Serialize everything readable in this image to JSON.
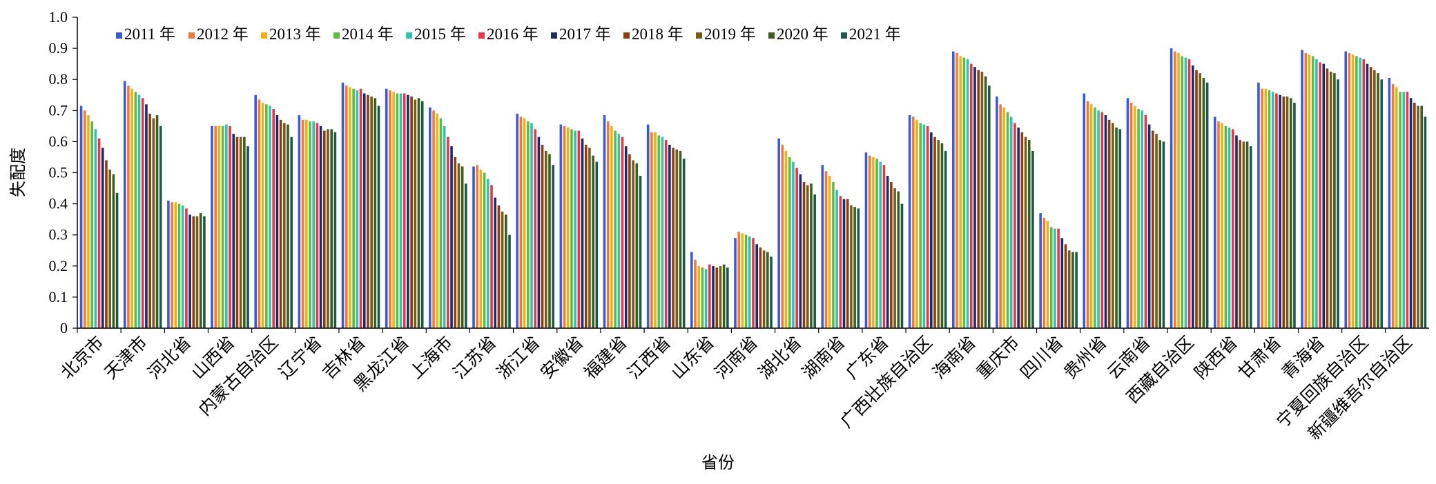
{
  "chart_data": {
    "type": "bar",
    "title": "",
    "xlabel": "省份",
    "ylabel": "失配度",
    "ylim": [
      0,
      1.0
    ],
    "yticks": [
      "0",
      "0.1",
      "0.2",
      "0.3",
      "0.4",
      "0.5",
      "0.6",
      "0.7",
      "0.8",
      "0.9",
      "1.0"
    ],
    "legend_position": "top-left",
    "grid": false,
    "categories": [
      "北京市",
      "天津市",
      "河北省",
      "山西省",
      "内蒙古自治区",
      "辽宁省",
      "吉林省",
      "黑龙江省",
      "上海市",
      "江苏省",
      "浙江省",
      "安徽省",
      "福建省",
      "江西省",
      "山东省",
      "河南省",
      "湖北省",
      "湖南省",
      "广东省",
      "广西壮族自治区",
      "海南省",
      "重庆市",
      "四川省",
      "贵州省",
      "云南省",
      "西藏自治区",
      "陕西省",
      "甘肃省",
      "青海省",
      "宁夏回族自治区",
      "新疆维吾尔自治区"
    ],
    "series": [
      {
        "name": "2011 年",
        "color": "#3b5bd6",
        "values": [
          0.715,
          0.795,
          0.41,
          0.65,
          0.75,
          0.685,
          0.79,
          0.77,
          0.71,
          0.52,
          0.69,
          0.655,
          0.685,
          0.655,
          0.245,
          0.29,
          0.61,
          0.525,
          0.565,
          0.685,
          0.89,
          0.745,
          0.37,
          0.755,
          0.74,
          0.9,
          0.68,
          0.79,
          0.895,
          0.89,
          0.805
        ]
      },
      {
        "name": "2012 年",
        "color": "#f07a3c",
        "values": [
          0.7,
          0.78,
          0.405,
          0.65,
          0.735,
          0.67,
          0.78,
          0.765,
          0.7,
          0.525,
          0.68,
          0.65,
          0.665,
          0.63,
          0.22,
          0.31,
          0.59,
          0.505,
          0.555,
          0.68,
          0.885,
          0.72,
          0.355,
          0.73,
          0.725,
          0.89,
          0.665,
          0.77,
          0.885,
          0.885,
          0.785
        ]
      },
      {
        "name": "2013 年",
        "color": "#f2b10e",
        "values": [
          0.685,
          0.77,
          0.405,
          0.65,
          0.725,
          0.67,
          0.775,
          0.76,
          0.69,
          0.51,
          0.675,
          0.645,
          0.65,
          0.63,
          0.2,
          0.305,
          0.57,
          0.49,
          0.55,
          0.67,
          0.875,
          0.71,
          0.345,
          0.72,
          0.715,
          0.885,
          0.66,
          0.77,
          0.88,
          0.88,
          0.775
        ]
      },
      {
        "name": "2014 年",
        "color": "#5dbb46",
        "values": [
          0.665,
          0.76,
          0.4,
          0.65,
          0.72,
          0.665,
          0.77,
          0.755,
          0.675,
          0.5,
          0.665,
          0.64,
          0.635,
          0.62,
          0.195,
          0.3,
          0.55,
          0.47,
          0.545,
          0.66,
          0.87,
          0.695,
          0.325,
          0.71,
          0.705,
          0.875,
          0.65,
          0.765,
          0.875,
          0.875,
          0.76
        ]
      },
      {
        "name": "2015 年",
        "color": "#2ec4b0",
        "values": [
          0.64,
          0.75,
          0.395,
          0.655,
          0.715,
          0.665,
          0.765,
          0.755,
          0.65,
          0.48,
          0.66,
          0.635,
          0.625,
          0.615,
          0.19,
          0.295,
          0.535,
          0.445,
          0.535,
          0.655,
          0.865,
          0.68,
          0.32,
          0.7,
          0.7,
          0.87,
          0.645,
          0.76,
          0.865,
          0.87,
          0.76
        ]
      },
      {
        "name": "2016 年",
        "color": "#e8354a",
        "values": [
          0.61,
          0.74,
          0.385,
          0.65,
          0.705,
          0.66,
          0.77,
          0.755,
          0.615,
          0.46,
          0.64,
          0.635,
          0.615,
          0.605,
          0.205,
          0.29,
          0.515,
          0.425,
          0.525,
          0.65,
          0.85,
          0.66,
          0.32,
          0.695,
          0.685,
          0.865,
          0.64,
          0.755,
          0.855,
          0.865,
          0.76
        ]
      },
      {
        "name": "2017 年",
        "color": "#1c2b6b",
        "values": [
          0.58,
          0.72,
          0.365,
          0.625,
          0.685,
          0.65,
          0.755,
          0.75,
          0.585,
          0.42,
          0.615,
          0.61,
          0.585,
          0.59,
          0.2,
          0.27,
          0.495,
          0.415,
          0.49,
          0.63,
          0.84,
          0.645,
          0.29,
          0.685,
          0.655,
          0.845,
          0.62,
          0.75,
          0.85,
          0.85,
          0.74
        ]
      },
      {
        "name": "2018 年",
        "color": "#8c3d14",
        "values": [
          0.54,
          0.69,
          0.36,
          0.615,
          0.67,
          0.635,
          0.75,
          0.745,
          0.55,
          0.395,
          0.59,
          0.59,
          0.56,
          0.58,
          0.195,
          0.26,
          0.47,
          0.415,
          0.47,
          0.615,
          0.83,
          0.63,
          0.27,
          0.67,
          0.635,
          0.83,
          0.605,
          0.745,
          0.835,
          0.84,
          0.725
        ]
      },
      {
        "name": "2019 年",
        "color": "#7a5a14",
        "values": [
          0.51,
          0.675,
          0.36,
          0.615,
          0.66,
          0.64,
          0.745,
          0.735,
          0.53,
          0.375,
          0.57,
          0.58,
          0.54,
          0.575,
          0.2,
          0.25,
          0.46,
          0.395,
          0.45,
          0.605,
          0.825,
          0.615,
          0.25,
          0.66,
          0.625,
          0.82,
          0.6,
          0.745,
          0.825,
          0.83,
          0.715
        ]
      },
      {
        "name": "2020 年",
        "color": "#3a5e1e",
        "values": [
          0.495,
          0.685,
          0.37,
          0.615,
          0.655,
          0.64,
          0.74,
          0.74,
          0.52,
          0.365,
          0.56,
          0.555,
          0.53,
          0.57,
          0.205,
          0.245,
          0.465,
          0.39,
          0.44,
          0.595,
          0.81,
          0.605,
          0.245,
          0.645,
          0.605,
          0.805,
          0.6,
          0.74,
          0.82,
          0.82,
          0.715
        ]
      },
      {
        "name": "2021 年",
        "color": "#1a5a48",
        "values": [
          0.435,
          0.65,
          0.36,
          0.585,
          0.615,
          0.63,
          0.715,
          0.73,
          0.465,
          0.3,
          0.525,
          0.535,
          0.49,
          0.545,
          0.195,
          0.23,
          0.43,
          0.385,
          0.4,
          0.57,
          0.78,
          0.57,
          0.245,
          0.64,
          0.6,
          0.79,
          0.585,
          0.725,
          0.8,
          0.8,
          0.68
        ]
      }
    ]
  }
}
